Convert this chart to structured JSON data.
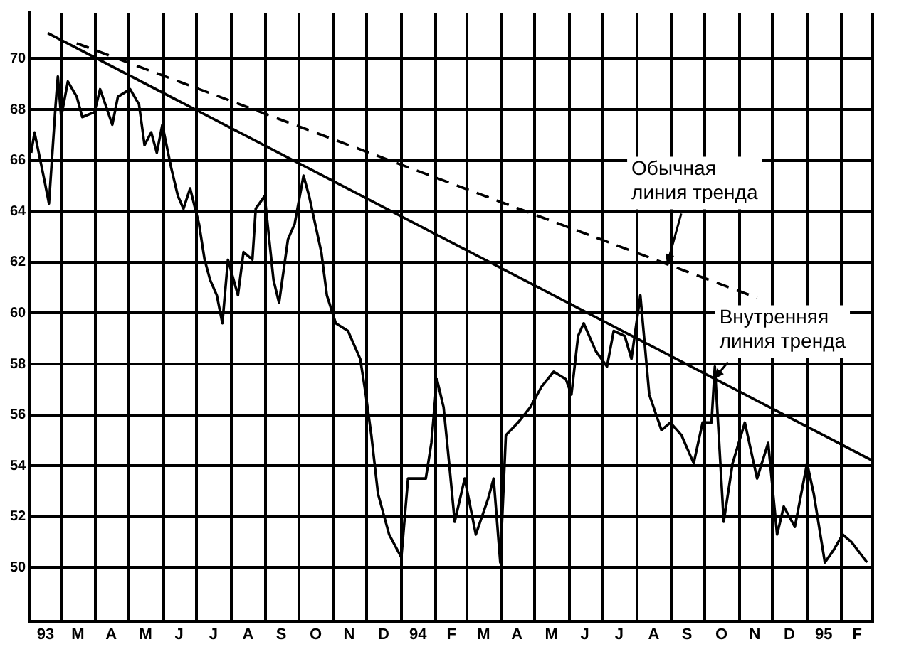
{
  "chart_data": {
    "type": "line",
    "xlim": [
      "1993-02-01",
      "1995-03-01"
    ],
    "ylim": [
      47.9,
      71.8
    ],
    "yticks": [
      50,
      52,
      54,
      56,
      58,
      60,
      62,
      64,
      66,
      68,
      70
    ],
    "xticks": [
      {
        "value": "1993-02-15",
        "label": "93"
      },
      {
        "value": "1993-03-01",
        "label": null
      },
      {
        "value": "1993-03-16",
        "label": "M"
      },
      {
        "value": "1993-04-01",
        "label": null
      },
      {
        "value": "1993-04-15",
        "label": "A"
      },
      {
        "value": "1993-05-01",
        "label": null
      },
      {
        "value": "1993-05-16",
        "label": "M"
      },
      {
        "value": "1993-06-01",
        "label": null
      },
      {
        "value": "1993-06-15",
        "label": "J"
      },
      {
        "value": "1993-07-01",
        "label": null
      },
      {
        "value": "1993-07-16",
        "label": "J"
      },
      {
        "value": "1993-08-01",
        "label": null
      },
      {
        "value": "1993-08-16",
        "label": "A"
      },
      {
        "value": "1993-09-01",
        "label": null
      },
      {
        "value": "1993-09-15",
        "label": "S"
      },
      {
        "value": "1993-10-01",
        "label": null
      },
      {
        "value": "1993-10-16",
        "label": "O"
      },
      {
        "value": "1993-11-01",
        "label": null
      },
      {
        "value": "1993-11-15",
        "label": "N"
      },
      {
        "value": "1993-12-01",
        "label": null
      },
      {
        "value": "1993-12-16",
        "label": "D"
      },
      {
        "value": "1994-01-01",
        "label": null
      },
      {
        "value": "1994-01-16",
        "label": "94"
      },
      {
        "value": "1994-02-01",
        "label": null
      },
      {
        "value": "1994-02-15",
        "label": "F"
      },
      {
        "value": "1994-03-01",
        "label": null
      },
      {
        "value": "1994-03-16",
        "label": "M"
      },
      {
        "value": "1994-04-01",
        "label": null
      },
      {
        "value": "1994-04-15",
        "label": "A"
      },
      {
        "value": "1994-05-01",
        "label": null
      },
      {
        "value": "1994-05-16",
        "label": "M"
      },
      {
        "value": "1994-06-01",
        "label": null
      },
      {
        "value": "1994-06-15",
        "label": "J"
      },
      {
        "value": "1994-07-01",
        "label": null
      },
      {
        "value": "1994-07-16",
        "label": "J"
      },
      {
        "value": "1994-08-01",
        "label": null
      },
      {
        "value": "1994-08-16",
        "label": "A"
      },
      {
        "value": "1994-09-01",
        "label": null
      },
      {
        "value": "1994-09-15",
        "label": "S"
      },
      {
        "value": "1994-10-01",
        "label": null
      },
      {
        "value": "1994-10-16",
        "label": "O"
      },
      {
        "value": "1994-11-01",
        "label": null
      },
      {
        "value": "1994-11-15",
        "label": "N"
      },
      {
        "value": "1994-12-01",
        "label": null
      },
      {
        "value": "1994-12-16",
        "label": "D"
      },
      {
        "value": "1995-01-01",
        "label": null
      },
      {
        "value": "1995-01-16",
        "label": "95"
      },
      {
        "value": "1995-02-01",
        "label": null
      },
      {
        "value": "1995-02-15",
        "label": "F"
      },
      {
        "value": "1995-03-01",
        "label": null
      }
    ],
    "grid": true,
    "series": [
      {
        "color": "#000000",
        "x": [
          "1993-02-02",
          "1993-02-05",
          "1993-02-14",
          "1993-02-18",
          "1993-02-24",
          "1993-02-26",
          "1993-03-01",
          "1993-03-07",
          "1993-03-15",
          "1993-03-20",
          "1993-03-31",
          "1993-04-05",
          "1993-04-16",
          "1993-04-21",
          "1993-05-02",
          "1993-05-10",
          "1993-05-15",
          "1993-05-21",
          "1993-05-26",
          "1993-05-31",
          "1993-06-08",
          "1993-06-14",
          "1993-06-19",
          "1993-06-25",
          "1993-07-03",
          "1993-07-08",
          "1993-07-13",
          "1993-07-19",
          "1993-07-24",
          "1993-07-29",
          "1993-08-07",
          "1993-08-12",
          "1993-08-20",
          "1993-08-23",
          "1993-08-31",
          "1993-09-08",
          "1993-09-13",
          "1993-09-21",
          "1993-09-27",
          "1993-10-05",
          "1993-10-10",
          "1993-10-21",
          "1993-10-26",
          "1993-11-03",
          "1993-11-14",
          "1993-11-25",
          "1993-11-30",
          "1993-12-05",
          "1993-12-11",
          "1993-12-21",
          "1994-01-01",
          "1994-01-07",
          "1994-01-15",
          "1994-01-23",
          "1994-01-28",
          "1994-02-02",
          "1994-02-08",
          "1994-02-13",
          "1994-02-18",
          "1994-02-27",
          "1994-03-09",
          "1994-03-20",
          "1994-03-25",
          "1994-03-31",
          "1994-04-05",
          "1994-04-16",
          "1994-04-27",
          "1994-05-07",
          "1994-05-18",
          "1994-05-29",
          "1994-06-03",
          "1994-06-09",
          "1994-06-14",
          "1994-06-25",
          "1994-07-05",
          "1994-07-11",
          "1994-07-21",
          "1994-07-27",
          "1994-08-04",
          "1994-08-12",
          "1994-08-23",
          "1994-08-31",
          "1994-09-10",
          "1994-09-21",
          "1994-09-29",
          "1994-10-07",
          "1994-10-10",
          "1994-10-18",
          "1994-10-26",
          "1994-11-06",
          "1994-11-17",
          "1994-11-27",
          "1994-12-05",
          "1994-12-11",
          "1994-12-21",
          "1995-01-01",
          "1995-01-07",
          "1995-01-17",
          "1995-01-25",
          "1995-02-02",
          "1995-02-10",
          "1995-02-24"
        ],
        "values": [
          66.3,
          67.1,
          65.2,
          64.3,
          68.2,
          69.3,
          67.7,
          69.1,
          68.5,
          67.7,
          67.9,
          68.8,
          67.4,
          68.5,
          68.8,
          68.2,
          66.6,
          67.1,
          66.3,
          67.4,
          65.7,
          64.6,
          64.1,
          64.9,
          63.5,
          62.1,
          61.3,
          60.7,
          59.6,
          62.1,
          60.7,
          62.4,
          62.1,
          64.1,
          64.6,
          61.3,
          60.4,
          62.9,
          63.5,
          65.4,
          64.6,
          62.4,
          60.7,
          59.6,
          59.3,
          58.2,
          56.8,
          55.2,
          52.9,
          51.3,
          50.4,
          53.5,
          53.5,
          53.5,
          54.9,
          57.4,
          56.3,
          54.1,
          51.8,
          53.5,
          51.3,
          52.7,
          53.5,
          50.2,
          55.2,
          55.7,
          56.3,
          57.1,
          57.7,
          57.4,
          56.8,
          59.1,
          59.6,
          58.5,
          57.9,
          59.3,
          59.1,
          58.2,
          60.7,
          56.8,
          55.4,
          55.7,
          55.2,
          54.1,
          55.7,
          55.7,
          57.9,
          51.8,
          54.1,
          55.7,
          53.5,
          54.9,
          51.3,
          52.4,
          51.6,
          54.1,
          52.9,
          50.2,
          50.7,
          51.3,
          51.0,
          50.2
        ]
      },
      {
        "color": "#000000",
        "x": [
          "1993-02-17",
          "1995-03-01"
        ],
        "values": [
          71.0,
          54.2
        ]
      },
      {
        "color": "#000000",
        "line_style": "dashed",
        "x": [
          "1993-03-15",
          "1994-11-17"
        ],
        "values": [
          70.6,
          60.6
        ]
      }
    ],
    "annotations": [
      {
        "text": "Обычная линия тренда",
        "x": "1994-08-28",
        "y": 61.9
      },
      {
        "text": "Внутренняя линия тренда",
        "x": "1994-10-09",
        "y": 57.4
      }
    ]
  }
}
